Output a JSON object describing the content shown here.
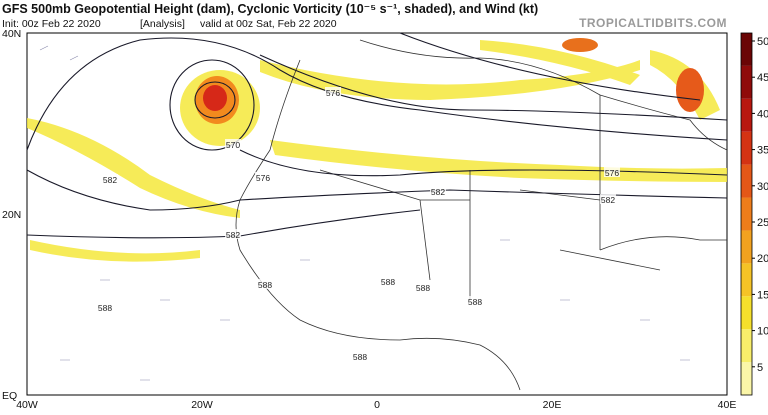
{
  "header": {
    "title": "GFS 500mb Geopotential Height (dam), Cyclonic Vorticity (10⁻⁵ s⁻¹, shaded), and Wind (kt)",
    "init": "Init: 00z Feb 22 2020",
    "analysis": "[Analysis]",
    "valid": "valid at 00z Sat, Feb 22 2020",
    "site": "TROPICALTIDBITS.COM"
  },
  "map": {
    "lat_labels": [
      "40N",
      "20N",
      "EQ"
    ],
    "lon_labels": [
      "40W",
      "20W",
      "0",
      "20E",
      "40E"
    ],
    "contour_labels": [
      "576",
      "570",
      "576",
      "582",
      "582",
      "576",
      "582",
      "582",
      "588",
      "588",
      "588",
      "588",
      "588",
      "588"
    ]
  },
  "colorbar": {
    "labels": [
      50,
      45,
      40,
      35,
      30,
      25,
      20,
      15,
      10,
      5
    ]
  }
}
